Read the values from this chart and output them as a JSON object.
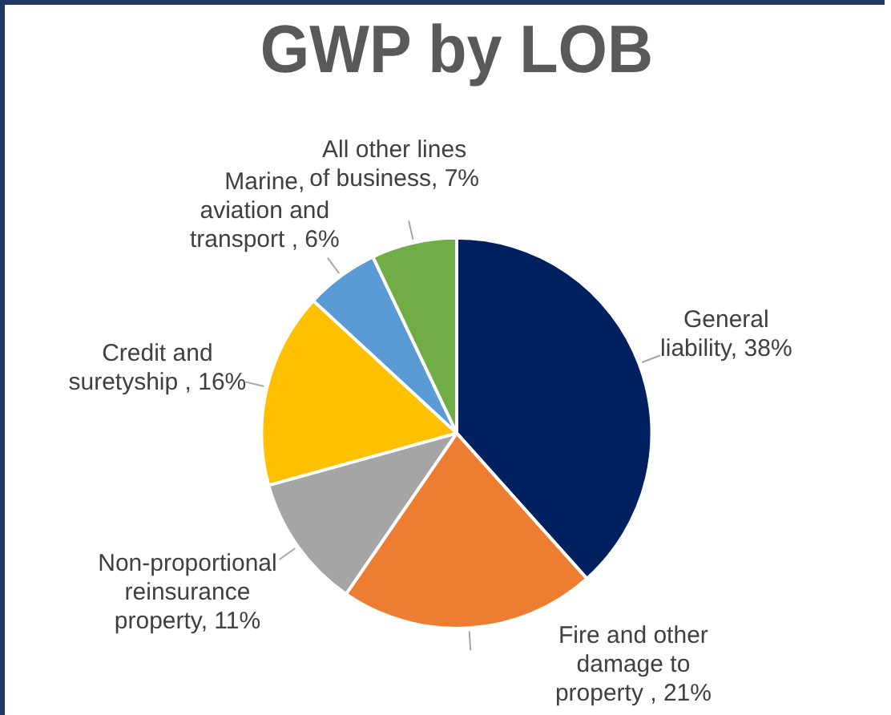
{
  "chart_data": {
    "type": "pie",
    "title": "GWP by LOB",
    "categories": [
      "General liability",
      "Fire and other damage to property ",
      "Non-proportional reinsurance property",
      "Credit and suretyship ",
      "Marine, aviation and transport ",
      "All other lines of business"
    ],
    "values": [
      38,
      21,
      11,
      16,
      6,
      7
    ],
    "colors": [
      "#002060",
      "#ed7d31",
      "#a5a5a5",
      "#ffc000",
      "#5b9bd5",
      "#70ad47"
    ],
    "value_labels": [
      "38%",
      "21%",
      "11%",
      "16%",
      "6%",
      "7%"
    ],
    "legend": false
  }
}
